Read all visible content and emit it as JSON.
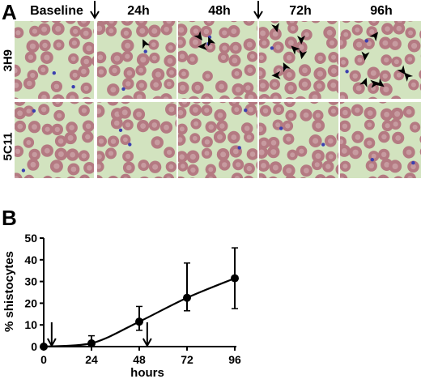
{
  "panel_a": {
    "letter": "A",
    "columns": [
      "Baseline",
      "24h",
      "48h",
      "72h",
      "96h"
    ],
    "rows": [
      "3H9",
      "5C11"
    ],
    "injection_arrows_before_columns": [
      "24h",
      "72h"
    ],
    "arrowheads_per_tile": {
      "3H9": [
        0,
        1,
        3,
        6,
        7
      ],
      "5C11": [
        0,
        0,
        0,
        0,
        0
      ]
    },
    "colors": {
      "background": "#d2e3bf",
      "cell": "#b47a82",
      "cell_center": "#c79ba0",
      "platelet": "#3b3fb0"
    }
  },
  "panel_b": {
    "letter": "B",
    "chart_data": {
      "type": "line",
      "ylabel": "% shistocytes",
      "xlabel": "hours",
      "x": [
        0,
        24,
        48,
        72,
        96
      ],
      "xticks": [
        "0",
        "24",
        "48",
        "72",
        "96"
      ],
      "yticks": [
        "0",
        "10",
        "20",
        "30",
        "40",
        "50"
      ],
      "ylim": [
        0,
        50
      ],
      "xlim": [
        0,
        96
      ],
      "series": [
        {
          "values": [
            0,
            1.5,
            11.5,
            22.5,
            31.5
          ],
          "err_low": [
            0,
            0,
            4,
            6,
            14
          ],
          "err_high": [
            0,
            3.5,
            7,
            16,
            14
          ]
        }
      ],
      "injection_arrows_x": [
        4,
        52
      ],
      "grid": false,
      "legend": "none"
    }
  }
}
